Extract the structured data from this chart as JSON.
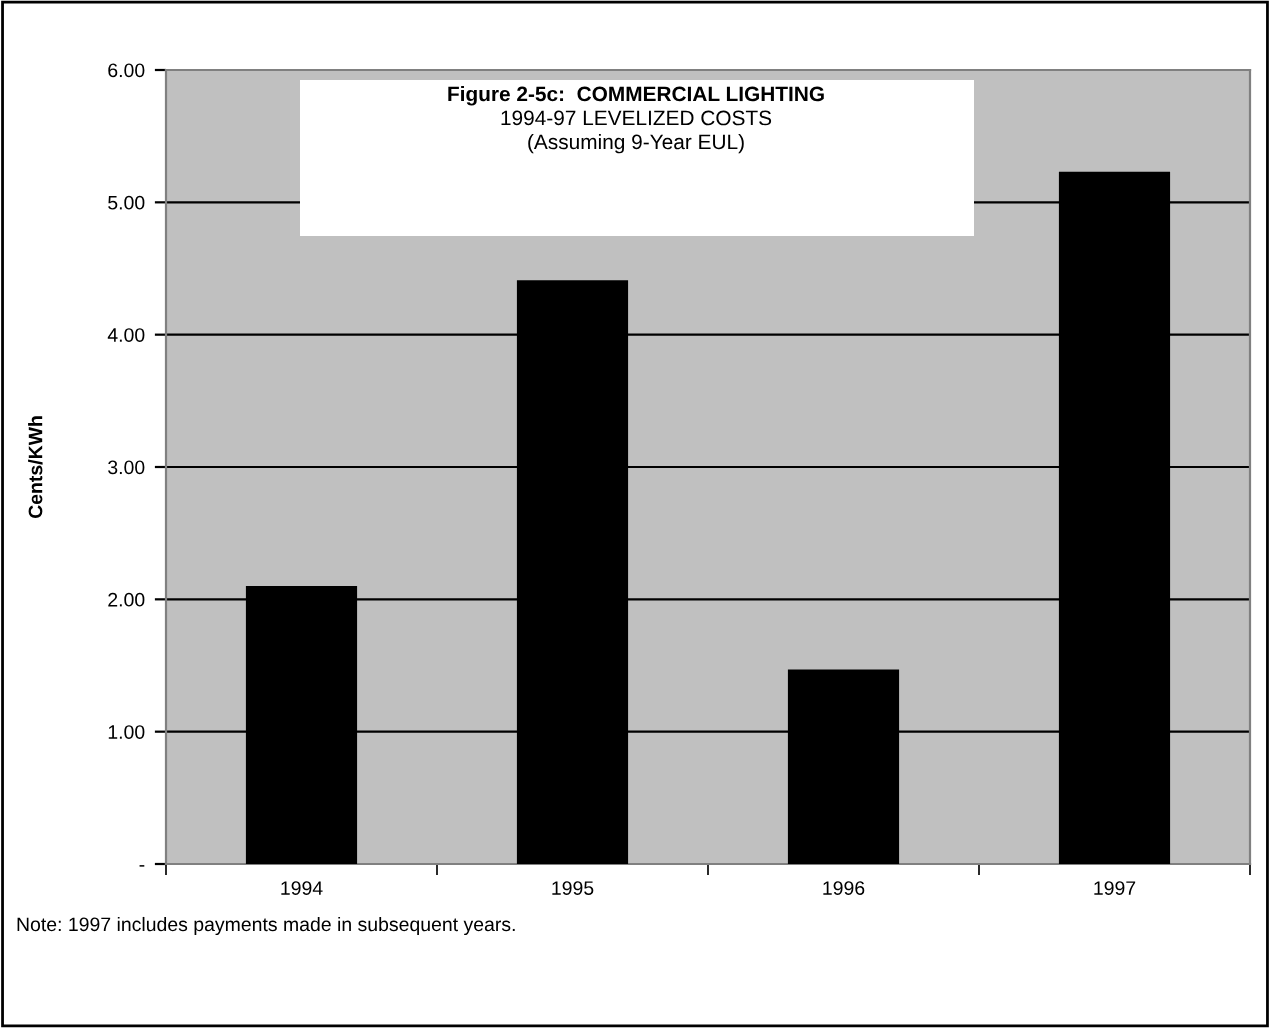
{
  "chart_data": {
    "type": "bar",
    "title": "Figure 2-5c:  COMMERCIAL LIGHTING",
    "subtitle": "1994-97 LEVELIZED COSTS\n(Assuming 9-Year EUL)",
    "ylabel": "Cents/KWh",
    "categories": [
      "1994",
      "1995",
      "1996",
      "1997"
    ],
    "values": [
      2.09,
      4.4,
      1.46,
      5.22
    ],
    "color": "#000000",
    "ylim": [
      0,
      6
    ],
    "yticks": [
      {
        "value": 0,
        "label": "-"
      },
      {
        "value": 1,
        "label": "1.00"
      },
      {
        "value": 2,
        "label": "2.00"
      },
      {
        "value": 3,
        "label": "3.00"
      },
      {
        "value": 4,
        "label": "4.00"
      },
      {
        "value": 5,
        "label": "5.00"
      },
      {
        "value": 6,
        "label": "6.00"
      }
    ],
    "grid": "y",
    "annotations": [
      "Note: 1997 includes payments made in subsequent years."
    ]
  }
}
